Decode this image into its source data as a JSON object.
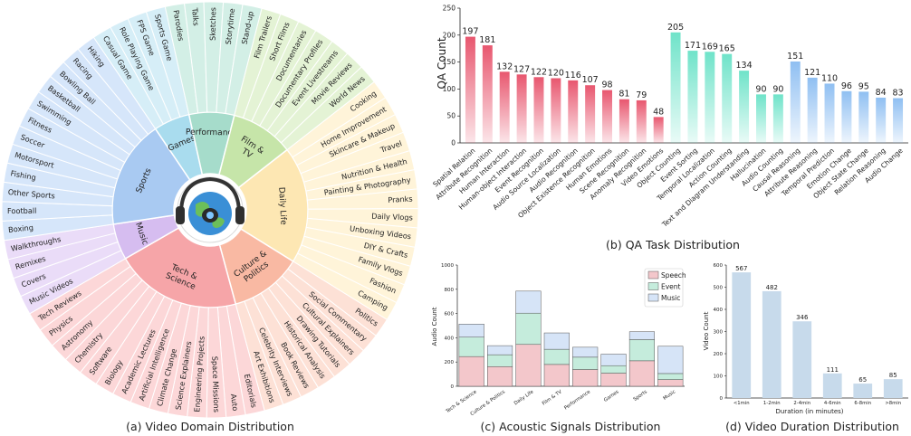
{
  "chart_data": [
    {
      "id": "a",
      "type": "sunburst",
      "caption": "(a) Video Domain Distribution",
      "center_icon": "globe-with-headphones-icon",
      "domains": [
        {
          "name": "Daily Life",
          "color": "#fde7b3",
          "light": "#fff4d9",
          "leaves": [
            "Cooking",
            "Home Improvement",
            "Skincare & Makeup",
            "Travel",
            "Nutrition & Health",
            "Painting & Photography",
            "Pranks",
            "Daily Vlogs",
            "Unboxing Videos",
            "DIY & Crafts",
            "Family Vlogs",
            "Fashion",
            "Camping"
          ]
        },
        {
          "name": "Culture & Politics",
          "color": "#f9b9a3",
          "light": "#fde1d6",
          "leaves": [
            "Politics",
            "Social Commentary",
            "Cultural Explainers",
            "Drawing Tutorials",
            "Historical Analysis",
            "Book Reviews",
            "Celebrity Interviews",
            "Art Exhibitions"
          ]
        },
        {
          "name": "Tech & Science",
          "color": "#f6a5a8",
          "light": "#fcd7d8",
          "leaves": [
            "Editorials",
            "Auto",
            "Space Missions",
            "Engineering Projects",
            "Science Explainers",
            "Climate Change",
            "Artificial Intelligence",
            "Academic Lectures",
            "Biology",
            "Software",
            "Chemistry",
            "Astronomy",
            "Physics",
            "Tech Reviews"
          ]
        },
        {
          "name": "Music",
          "color": "#d6bdf0",
          "light": "#eadcf8",
          "leaves": [
            "Music Videos",
            "Covers",
            "Remixes",
            "Walkthroughs"
          ]
        },
        {
          "name": "Sports",
          "color": "#a9caf2",
          "light": "#d6e6fa",
          "leaves": [
            "Boxing",
            "Football",
            "Other Sports",
            "Fishing",
            "Motorsport",
            "Soccer",
            "Fitness",
            "Swimming",
            "Basketball",
            "Bowling Ball",
            "Racing",
            "Hiking"
          ]
        },
        {
          "name": "Games",
          "color": "#a9dcee",
          "light": "#d6eef7",
          "leaves": [
            "Casual Game",
            "Role Playing Game",
            "FPS Game",
            "Sports Game"
          ]
        },
        {
          "name": "Performance",
          "color": "#a6dccb",
          "light": "#d3efe6",
          "leaves": [
            "Parodies",
            "Talks",
            "Sketches",
            "Storytime",
            "Stand-up"
          ]
        },
        {
          "name": "Film & TV",
          "color": "#c6e5a9",
          "light": "#e4f3d5",
          "leaves": [
            "Film Trailers",
            "Short Films",
            "Documentaries",
            "Documentary Profiles",
            "Event Livestreams",
            "Movie Reviews",
            "World News"
          ]
        }
      ]
    },
    {
      "id": "b",
      "type": "bar",
      "caption": "(b) QA Task Distribution",
      "ylabel": "QA Count",
      "ylim": [
        0,
        250
      ],
      "yticks": [
        0,
        50,
        100,
        150,
        200,
        250
      ],
      "groups": [
        {
          "name": "speech",
          "color": "#e8576f",
          "categories": [
            "Spatial Relation",
            "Attribute Recognition",
            "Human Interaction",
            "Human-object Interaction",
            "Event Recognition",
            "Audio Source Localization",
            "Audio Recognition",
            "Object Existence Recognition",
            "Human Emotions",
            "Scene Recognition",
            "Anomaly Recognition",
            "Video Emotions"
          ],
          "values": [
            197,
            181,
            132,
            127,
            122,
            120,
            116,
            107,
            98,
            81,
            79,
            48
          ]
        },
        {
          "name": "event",
          "color": "#6fe3c9",
          "categories": [
            "Object Counting",
            "Event Sorting",
            "Temporal Localization",
            "Action Counting",
            "Text and Diagram Understanding",
            "Hallucination",
            "Audio Counting"
          ],
          "values": [
            205,
            171,
            169,
            165,
            134,
            90,
            90
          ]
        },
        {
          "name": "music",
          "color": "#8fbff2",
          "categories": [
            "Causal Reasoning",
            "Attribute Reasoning",
            "Temporal Prediction",
            "Emotion Change",
            "Object State Change",
            "Relation Reasoning",
            "Audio Change"
          ],
          "values": [
            151,
            121,
            110,
            96,
            95,
            84,
            83
          ]
        }
      ]
    },
    {
      "id": "c",
      "type": "stacked_bar",
      "caption": "(c) Acoustic Signals Distribution",
      "ylabel": "Audio Count",
      "ylim": [
        0,
        1000
      ],
      "yticks": [
        0,
        200,
        400,
        600,
        800,
        1000
      ],
      "categories": [
        "Tech & Science",
        "Culture & Politics",
        "Daily Life",
        "Film & TV",
        "Performance",
        "Games",
        "Sports",
        "Music"
      ],
      "legend_position": "top-right",
      "series": [
        {
          "name": "Speech",
          "color": "#f3c7cb",
          "values": [
            245,
            162,
            345,
            180,
            138,
            108,
            210,
            55
          ]
        },
        {
          "name": "Event",
          "color": "#c5ecdc",
          "values": [
            160,
            98,
            258,
            125,
            102,
            62,
            175,
            50
          ]
        },
        {
          "name": "Music",
          "color": "#d6e4f7",
          "values": [
            108,
            75,
            182,
            135,
            82,
            95,
            65,
            225
          ]
        }
      ]
    },
    {
      "id": "d",
      "type": "bar",
      "caption": "(d) Video Duration Distribution",
      "xlabel": "Duration (in minutes)",
      "ylabel": "Video Count",
      "ylim": [
        0,
        600
      ],
      "yticks": [
        0,
        100,
        200,
        300,
        400,
        500,
        600
      ],
      "color": "#c7daeb",
      "categories": [
        "<1min",
        "1-2min",
        "2-4min",
        "4-6min",
        "6-8min",
        ">8min"
      ],
      "values": [
        567,
        482,
        346,
        111,
        65,
        85
      ]
    }
  ]
}
